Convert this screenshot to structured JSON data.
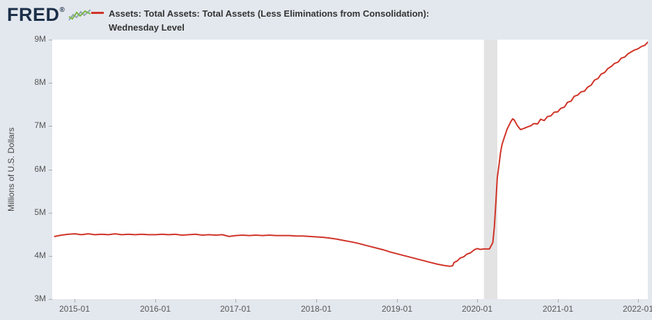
{
  "header": {
    "logo_text": "FRED",
    "registered_mark": "®",
    "legend": {
      "label_line1": "Assets: Total Assets: Total Assets (Less Eliminations from Consolidation):",
      "label_line2": "Wednesday Level"
    }
  },
  "axes": {
    "y_axis_label": "Millions of U.S. Dollars"
  },
  "colors": {
    "background": "#e3e8ee",
    "plot_background": "#ffffff",
    "recession_band": "#e3e3e3",
    "line": "#d03328",
    "logo": "#1c3049",
    "tick_text": "#555555"
  },
  "chart_data": {
    "type": "line",
    "title": "Assets: Total Assets: Total Assets (Less Eliminations from Consolidation): Wednesday Level",
    "xlabel": "",
    "ylabel": "Millions of U.S. Dollars",
    "ylim": [
      3,
      9
    ],
    "xlim_decimal_years": [
      2014.72,
      2022.12
    ],
    "grid": false,
    "legend_position": "top",
    "line_color": "#d03328",
    "values_unit": "M = millions of millions of U.S. dollars (trillions)",
    "y_ticks": [
      {
        "label": "3M",
        "value": 3
      },
      {
        "label": "4M",
        "value": 4
      },
      {
        "label": "5M",
        "value": 5
      },
      {
        "label": "6M",
        "value": 6
      },
      {
        "label": "7M",
        "value": 7
      },
      {
        "label": "8M",
        "value": 8
      },
      {
        "label": "9M",
        "value": 9
      }
    ],
    "x_ticks": [
      {
        "label": "2015-01"
      },
      {
        "label": "2016-01"
      },
      {
        "label": "2017-01"
      },
      {
        "label": "2018-01"
      },
      {
        "label": "2019-01"
      },
      {
        "label": "2020-01"
      },
      {
        "label": "2021-01"
      },
      {
        "label": "2022-01"
      }
    ],
    "recession_band": {
      "start": "2020-02-01",
      "end": "2020-04-01",
      "color": "#e3e3e3"
    },
    "points": [
      [
        "2014-10-01",
        4.45
      ],
      [
        "2014-11-01",
        4.48
      ],
      [
        "2014-12-01",
        4.5
      ],
      [
        "2015-01-01",
        4.51
      ],
      [
        "2015-02-01",
        4.49
      ],
      [
        "2015-03-01",
        4.51
      ],
      [
        "2015-04-01",
        4.49
      ],
      [
        "2015-05-01",
        4.5
      ],
      [
        "2015-06-01",
        4.49
      ],
      [
        "2015-07-01",
        4.51
      ],
      [
        "2015-08-01",
        4.49
      ],
      [
        "2015-09-01",
        4.5
      ],
      [
        "2015-10-01",
        4.49
      ],
      [
        "2015-11-01",
        4.5
      ],
      [
        "2015-12-01",
        4.49
      ],
      [
        "2016-01-01",
        4.49
      ],
      [
        "2016-02-01",
        4.5
      ],
      [
        "2016-03-01",
        4.49
      ],
      [
        "2016-04-01",
        4.5
      ],
      [
        "2016-05-01",
        4.48
      ],
      [
        "2016-06-01",
        4.49
      ],
      [
        "2016-07-01",
        4.5
      ],
      [
        "2016-08-01",
        4.48
      ],
      [
        "2016-09-01",
        4.49
      ],
      [
        "2016-10-01",
        4.48
      ],
      [
        "2016-11-01",
        4.49
      ],
      [
        "2016-12-01",
        4.45
      ],
      [
        "2017-01-01",
        4.47
      ],
      [
        "2017-02-01",
        4.48
      ],
      [
        "2017-03-01",
        4.47
      ],
      [
        "2017-04-01",
        4.48
      ],
      [
        "2017-05-01",
        4.47
      ],
      [
        "2017-06-01",
        4.48
      ],
      [
        "2017-07-01",
        4.47
      ],
      [
        "2017-08-01",
        4.47
      ],
      [
        "2017-09-01",
        4.47
      ],
      [
        "2017-10-01",
        4.46
      ],
      [
        "2017-11-01",
        4.46
      ],
      [
        "2017-12-01",
        4.45
      ],
      [
        "2018-01-01",
        4.44
      ],
      [
        "2018-02-01",
        4.43
      ],
      [
        "2018-03-01",
        4.41
      ],
      [
        "2018-04-01",
        4.39
      ],
      [
        "2018-05-01",
        4.36
      ],
      [
        "2018-06-01",
        4.33
      ],
      [
        "2018-07-01",
        4.3
      ],
      [
        "2018-08-01",
        4.26
      ],
      [
        "2018-09-01",
        4.22
      ],
      [
        "2018-10-01",
        4.18
      ],
      [
        "2018-11-01",
        4.14
      ],
      [
        "2018-12-01",
        4.09
      ],
      [
        "2019-01-01",
        4.05
      ],
      [
        "2019-02-01",
        4.01
      ],
      [
        "2019-03-01",
        3.97
      ],
      [
        "2019-04-01",
        3.93
      ],
      [
        "2019-05-01",
        3.89
      ],
      [
        "2019-06-01",
        3.85
      ],
      [
        "2019-07-01",
        3.81
      ],
      [
        "2019-08-01",
        3.78
      ],
      [
        "2019-08-28",
        3.76
      ],
      [
        "2019-09-11",
        3.77
      ],
      [
        "2019-09-18",
        3.85
      ],
      [
        "2019-10-01",
        3.88
      ],
      [
        "2019-10-15",
        3.95
      ],
      [
        "2019-11-01",
        3.98
      ],
      [
        "2019-11-15",
        4.04
      ],
      [
        "2019-12-01",
        4.07
      ],
      [
        "2019-12-18",
        4.14
      ],
      [
        "2020-01-01",
        4.17
      ],
      [
        "2020-01-15",
        4.15
      ],
      [
        "2020-02-01",
        4.16
      ],
      [
        "2020-02-26",
        4.16
      ],
      [
        "2020-03-11",
        4.31
      ],
      [
        "2020-03-18",
        4.67
      ],
      [
        "2020-03-25",
        5.25
      ],
      [
        "2020-04-01",
        5.81
      ],
      [
        "2020-04-08",
        6.08
      ],
      [
        "2020-04-15",
        6.37
      ],
      [
        "2020-04-22",
        6.57
      ],
      [
        "2020-05-01",
        6.72
      ],
      [
        "2020-05-15",
        6.93
      ],
      [
        "2020-06-01",
        7.1
      ],
      [
        "2020-06-10",
        7.17
      ],
      [
        "2020-06-17",
        7.14
      ],
      [
        "2020-07-01",
        7.01
      ],
      [
        "2020-07-15",
        6.92
      ],
      [
        "2020-08-01",
        6.95
      ],
      [
        "2020-08-15",
        6.98
      ],
      [
        "2020-09-01",
        7.01
      ],
      [
        "2020-09-15",
        7.06
      ],
      [
        "2020-10-01",
        7.05
      ],
      [
        "2020-10-15",
        7.16
      ],
      [
        "2020-11-01",
        7.13
      ],
      [
        "2020-11-15",
        7.22
      ],
      [
        "2020-12-01",
        7.24
      ],
      [
        "2020-12-15",
        7.32
      ],
      [
        "2021-01-01",
        7.33
      ],
      [
        "2021-01-15",
        7.41
      ],
      [
        "2021-02-01",
        7.44
      ],
      [
        "2021-02-15",
        7.55
      ],
      [
        "2021-03-01",
        7.58
      ],
      [
        "2021-03-15",
        7.69
      ],
      [
        "2021-04-01",
        7.72
      ],
      [
        "2021-04-15",
        7.79
      ],
      [
        "2021-05-01",
        7.81
      ],
      [
        "2021-05-15",
        7.9
      ],
      [
        "2021-06-01",
        7.95
      ],
      [
        "2021-06-15",
        8.06
      ],
      [
        "2021-07-01",
        8.1
      ],
      [
        "2021-07-15",
        8.2
      ],
      [
        "2021-08-01",
        8.24
      ],
      [
        "2021-08-15",
        8.33
      ],
      [
        "2021-09-01",
        8.38
      ],
      [
        "2021-09-15",
        8.45
      ],
      [
        "2021-10-01",
        8.48
      ],
      [
        "2021-10-15",
        8.57
      ],
      [
        "2021-11-01",
        8.6
      ],
      [
        "2021-11-15",
        8.67
      ],
      [
        "2021-12-01",
        8.72
      ],
      [
        "2021-12-15",
        8.76
      ],
      [
        "2022-01-01",
        8.79
      ],
      [
        "2022-01-15",
        8.84
      ],
      [
        "2022-02-01",
        8.87
      ],
      [
        "2022-02-16",
        8.95
      ]
    ]
  }
}
